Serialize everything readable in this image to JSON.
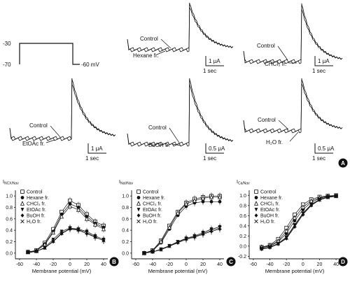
{
  "colors": {
    "ink": "#111111",
    "background": "#ffffff"
  },
  "panels": {
    "A": {
      "label": "A",
      "protocol": {
        "top_level": "-30",
        "bottom_level": "-70",
        "holding_label": "-60 mV"
      },
      "traces": [
        {
          "id": "hexane",
          "control_label": "Control",
          "fraction_label": "Hexane fr.",
          "scale_current": "1 μA",
          "scale_time": "1 sec"
        },
        {
          "id": "chcl3",
          "control_label": "Control",
          "fraction_label": "CHCl₃ fr.",
          "scale_current": "1 μA",
          "scale_time": "1 sec"
        },
        {
          "id": "etoac",
          "control_label": "Control",
          "fraction_label": "EtOAc fr.",
          "scale_current": "1 μA",
          "scale_time": "1 sec"
        },
        {
          "id": "buoh",
          "control_label": "Control",
          "fraction_label": "BuOH fr.",
          "scale_current": "0.5 μA",
          "scale_time": "1 sec"
        },
        {
          "id": "h2o",
          "control_label": "Control",
          "fraction_label": "H₂O fr.",
          "scale_current": "0.5 μA",
          "scale_time": "1 sec"
        }
      ]
    }
  },
  "chart_data": [
    {
      "type": "scatter",
      "panel": "B",
      "ylabel": "I_NCX/Nav",
      "xlabel": "Membrane potential (mV)",
      "xlim": [
        -65,
        45
      ],
      "ylim": [
        -0.1,
        1.1
      ],
      "xticks": [
        -60,
        -40,
        -20,
        0,
        20,
        40
      ],
      "yticks": [
        0.0,
        0.2,
        0.4,
        0.6,
        0.8,
        1.0
      ],
      "x": [
        -50,
        -40,
        -30,
        -20,
        -10,
        0,
        10,
        20,
        30,
        40
      ],
      "series": [
        {
          "name": "Control",
          "marker": "open-square",
          "values": [
            0.02,
            0.05,
            0.18,
            0.42,
            0.72,
            0.92,
            0.84,
            0.68,
            0.55,
            0.48
          ]
        },
        {
          "name": "Hexane fr.",
          "marker": "filled-circle",
          "values": [
            0.02,
            0.04,
            0.16,
            0.38,
            0.68,
            0.86,
            0.8,
            0.64,
            0.52,
            0.45
          ]
        },
        {
          "name": "CHCl₃ fr.",
          "marker": "open-triangle",
          "values": [
            0.02,
            0.04,
            0.15,
            0.36,
            0.64,
            0.82,
            0.76,
            0.6,
            0.5,
            0.42
          ]
        },
        {
          "name": "EtOAc fr.",
          "marker": "filled-triangle",
          "values": [
            0.01,
            0.03,
            0.1,
            0.24,
            0.38,
            0.44,
            0.42,
            0.38,
            0.3,
            0.24
          ]
        },
        {
          "name": "BuOH fr.",
          "marker": "filled-diamond",
          "values": [
            0.01,
            0.03,
            0.09,
            0.2,
            0.34,
            0.42,
            0.4,
            0.34,
            0.28,
            0.22
          ]
        },
        {
          "name": "H₂O fr.",
          "marker": "cross",
          "values": [
            0.01,
            0.03,
            0.09,
            0.21,
            0.35,
            0.43,
            0.41,
            0.36,
            0.28,
            0.22
          ]
        }
      ],
      "legend": "top-left"
    },
    {
      "type": "scatter",
      "panel": "C",
      "ylabel": "I_NaI/Nav",
      "xlabel": "Membrane potential (mV)",
      "xlim": [
        -65,
        45
      ],
      "ylim": [
        -0.1,
        1.1
      ],
      "xticks": [
        -60,
        -40,
        -20,
        0,
        20,
        40
      ],
      "yticks": [
        0.0,
        0.2,
        0.4,
        0.6,
        0.8,
        1.0
      ],
      "x": [
        -50,
        -40,
        -30,
        -20,
        -10,
        0,
        10,
        20,
        30,
        40
      ],
      "series": [
        {
          "name": "Control",
          "marker": "open-square",
          "values": [
            0.0,
            0.05,
            0.22,
            0.48,
            0.72,
            0.88,
            0.95,
            0.98,
            1.0,
            1.0
          ]
        },
        {
          "name": "Hexane fr.",
          "marker": "filled-circle",
          "values": [
            0.0,
            0.04,
            0.18,
            0.42,
            0.66,
            0.82,
            0.88,
            0.9,
            0.9,
            0.9
          ]
        },
        {
          "name": "CHCl₃ fr.",
          "marker": "open-triangle",
          "values": [
            0.0,
            0.04,
            0.2,
            0.45,
            0.7,
            0.86,
            0.92,
            0.96,
            0.98,
            0.98
          ]
        },
        {
          "name": "EtOAc fr.",
          "marker": "filled-triangle",
          "values": [
            0.0,
            0.02,
            0.07,
            0.13,
            0.2,
            0.26,
            0.3,
            0.36,
            0.42,
            0.46
          ]
        },
        {
          "name": "BuOH fr.",
          "marker": "filled-diamond",
          "values": [
            0.0,
            0.02,
            0.06,
            0.12,
            0.18,
            0.24,
            0.28,
            0.33,
            0.38,
            0.42
          ]
        },
        {
          "name": "H₂O fr.",
          "marker": "cross",
          "values": [
            0.0,
            0.02,
            0.06,
            0.12,
            0.19,
            0.25,
            0.29,
            0.34,
            0.4,
            0.44
          ]
        }
      ],
      "legend": "top-left"
    },
    {
      "type": "scatter",
      "panel": "D",
      "ylabel": "I_Ca/Nav",
      "xlabel": "Membrane potential (mV)",
      "xlim": [
        -65,
        45
      ],
      "ylim": [
        -0.25,
        1.1
      ],
      "xticks": [
        -60,
        -40,
        -20,
        0,
        20,
        40
      ],
      "yticks": [
        -0.2,
        0.0,
        0.2,
        0.4,
        0.6,
        0.8,
        1.0
      ],
      "x": [
        -50,
        -40,
        -30,
        -20,
        -10,
        0,
        10,
        20,
        30,
        40
      ],
      "series": [
        {
          "name": "Control",
          "marker": "open-square",
          "values": [
            -0.02,
            0.02,
            0.14,
            0.36,
            0.62,
            0.82,
            0.92,
            0.97,
            0.99,
            1.0
          ]
        },
        {
          "name": "Hexane fr.",
          "marker": "filled-circle",
          "values": [
            -0.03,
            0.0,
            0.08,
            0.25,
            0.5,
            0.72,
            0.86,
            0.94,
            0.98,
            0.99
          ]
        },
        {
          "name": "CHCl₃ fr.",
          "marker": "open-triangle",
          "values": [
            -0.02,
            0.01,
            0.1,
            0.3,
            0.56,
            0.77,
            0.89,
            0.95,
            0.98,
            0.99
          ]
        },
        {
          "name": "EtOAc fr.",
          "marker": "filled-triangle",
          "values": [
            -0.05,
            -0.02,
            0.05,
            0.18,
            0.42,
            0.65,
            0.82,
            0.92,
            0.97,
            0.99
          ]
        },
        {
          "name": "BuOH fr.",
          "marker": "filled-diamond",
          "values": [
            -0.06,
            -0.03,
            0.04,
            0.15,
            0.38,
            0.62,
            0.8,
            0.91,
            0.96,
            0.98
          ]
        },
        {
          "name": "H₂O fr.",
          "marker": "cross",
          "values": [
            -0.05,
            -0.02,
            0.05,
            0.16,
            0.4,
            0.64,
            0.81,
            0.91,
            0.96,
            0.98
          ]
        }
      ],
      "legend": "top-left"
    }
  ]
}
